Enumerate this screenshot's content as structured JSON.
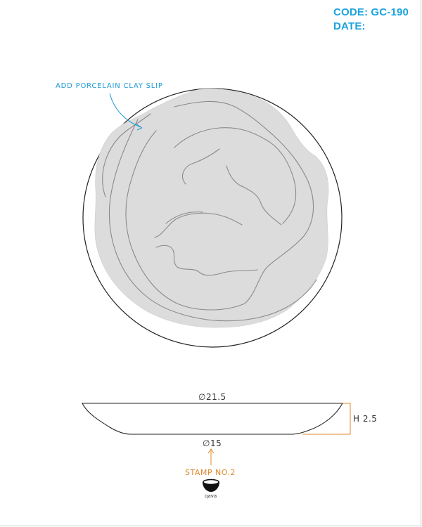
{
  "header": {
    "code_label": "CODE:",
    "code_value": "GC-190",
    "date_label": "DATE:",
    "date_value": ""
  },
  "top_view": {
    "annotation": "ADD PORCELAIN CLAY SLIP",
    "slip_color": "#dcdcdc",
    "swirl_color": "#8a8a8a"
  },
  "side_view": {
    "top_diameter": "∅21.5",
    "height": "H 2.5",
    "base_diameter": "∅15"
  },
  "stamp": {
    "label": "STAMP NO.2",
    "logo_text": "qava"
  },
  "colors": {
    "accent_blue": "#1aa3dc",
    "accent_orange": "#e08a2c"
  }
}
